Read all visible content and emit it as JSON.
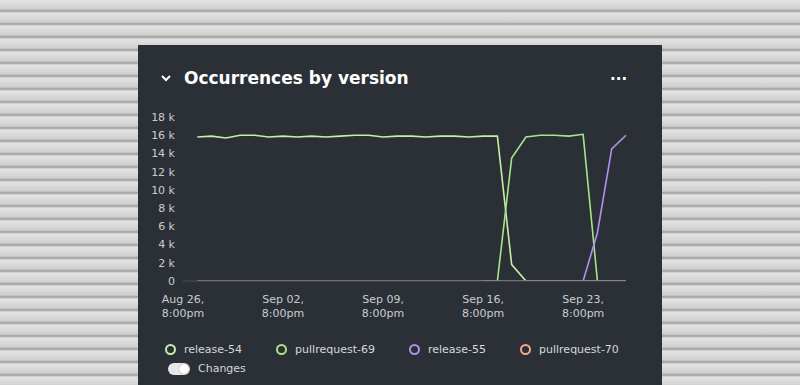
{
  "title": "Occurrences by version",
  "menu": "...",
  "changes_toggle": "Changes",
  "chart_data": {
    "type": "line",
    "categories": [
      "Aug 26, 8:00pm",
      null,
      null,
      null,
      null,
      null,
      null,
      "Sep 02, 8:00pm",
      null,
      null,
      null,
      null,
      null,
      null,
      "Sep 09, 8:00pm",
      null,
      null,
      null,
      null,
      null,
      null,
      "Sep 16, 8:00pm",
      null,
      null,
      null,
      null,
      null,
      null,
      "Sep 23, 8:00pm",
      null,
      null,
      null
    ],
    "series": [
      {
        "name": "release-54",
        "color": "#c6efa6",
        "values": [
          null,
          15800,
          15900,
          15700,
          16000,
          16000,
          15800,
          15900,
          15800,
          15900,
          15800,
          15900,
          16000,
          16000,
          15800,
          15900,
          15900,
          15800,
          15900,
          15900,
          15800,
          15900,
          15900,
          1800,
          0,
          0,
          0,
          0,
          0,
          0,
          0,
          0
        ]
      },
      {
        "name": "pullrequest-69",
        "color": "#a9e48c",
        "values": [
          null,
          null,
          null,
          null,
          null,
          null,
          null,
          null,
          null,
          null,
          null,
          null,
          null,
          null,
          null,
          null,
          null,
          null,
          null,
          null,
          null,
          0,
          0,
          13500,
          15800,
          16000,
          16000,
          15900,
          16100,
          0,
          0,
          0
        ]
      },
      {
        "name": "release-55",
        "color": "#b48ff0",
        "values": [
          null,
          null,
          null,
          null,
          null,
          null,
          null,
          null,
          null,
          null,
          null,
          null,
          null,
          null,
          null,
          null,
          null,
          null,
          null,
          null,
          null,
          null,
          null,
          null,
          null,
          null,
          null,
          null,
          0,
          5300,
          14500,
          16000
        ]
      },
      {
        "name": "pullrequest-70",
        "color": "#f3a88c",
        "values": [
          null,
          0,
          0,
          0,
          0,
          0,
          0,
          0,
          0,
          0,
          0,
          0,
          0,
          0,
          0,
          0,
          0,
          0,
          0,
          0,
          0,
          0,
          0,
          0,
          0,
          0,
          0,
          0,
          0,
          0,
          0,
          0
        ]
      }
    ],
    "ylim": [
      0,
      18000
    ],
    "yticks": [
      0,
      {
        "value": 2000,
        "label": "2 k"
      },
      {
        "value": 4000,
        "label": "4 k"
      },
      {
        "value": 6000,
        "label": "6 k"
      },
      {
        "value": 8000,
        "label": "8 k"
      },
      {
        "value": 10000,
        "label": "10 k"
      },
      {
        "value": 12000,
        "label": "12 k"
      },
      {
        "value": 14000,
        "label": "14 k"
      },
      {
        "value": 16000,
        "label": "16 k"
      },
      {
        "value": 18000,
        "label": "18 k"
      }
    ],
    "grid": false,
    "legend": "bottom"
  }
}
